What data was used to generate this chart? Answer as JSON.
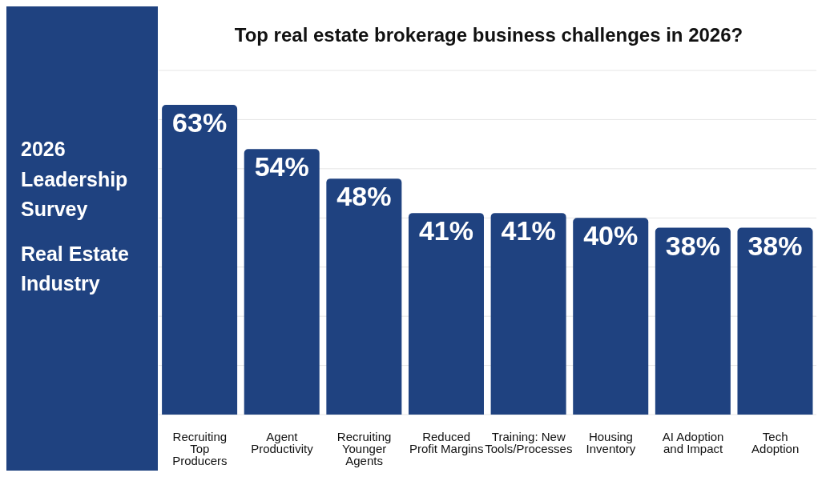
{
  "chart_data": {
    "type": "bar",
    "title": "Top real estate brokerage business challenges in 2026?",
    "annotations": [
      "2026 Leadership Survey",
      "Real Estate Industry"
    ],
    "categories": [
      "Recruiting Top Producers",
      "Agent Productivity",
      "Recruiting Younger Agents",
      "Reduced Profit Margins",
      "Training: New Tools/Processes",
      "Housing Inventory",
      "AI Adoption and Impact",
      "Tech Adoption"
    ],
    "values": [
      63,
      54,
      48,
      41,
      41,
      40,
      38,
      38
    ],
    "value_labels": [
      "63%",
      "54%",
      "48%",
      "41%",
      "41%",
      "40%",
      "38%",
      "38%"
    ],
    "color": "#1f4280",
    "ylim": [
      0,
      70
    ],
    "grid": "y",
    "tick_labels": "x",
    "legend": false
  }
}
